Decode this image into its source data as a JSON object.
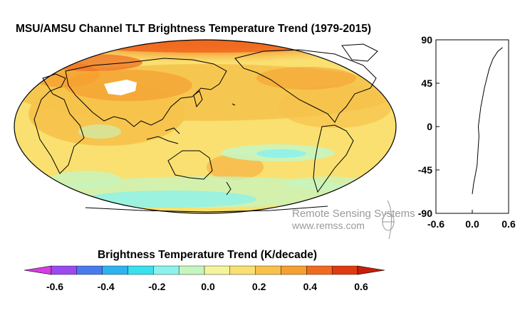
{
  "title": "MSU/AMSU Channel TLT Brightness Temperature Trend (1979-2015)",
  "colorbar": {
    "title": "Brightness Temperature Trend (K/decade)",
    "ticks": [
      "-0.6",
      "-0.4",
      "-0.2",
      "0.0",
      "0.2",
      "0.4",
      "0.6"
    ],
    "colors": [
      "#d53ee0",
      "#9a4af0",
      "#4a7af0",
      "#2fb3f0",
      "#38e0f0",
      "#8cf2ec",
      "#c6f5c0",
      "#f4f49a",
      "#f9e070",
      "#f6c24a",
      "#f5a030",
      "#f06a20",
      "#e03a10",
      "#c81e0a"
    ]
  },
  "map_colors": {
    "ocean_base": "#f9e070",
    "warm": "#f6c24a",
    "hot": "#f5a030",
    "arctic": "#f06a20",
    "cool": "#c6f5c0",
    "cold": "#8cf2ec",
    "no_data": "#ffffff"
  },
  "zonal_plot": {
    "y_ticks": [
      "90",
      "45",
      "0",
      "-45",
      "-90"
    ],
    "x_ticks": [
      "-0.6",
      "0.0",
      "0.6"
    ],
    "ylim": [
      -90,
      90
    ],
    "xlim": [
      -0.6,
      0.6
    ],
    "profile": [
      {
        "lat": -70,
        "trend": 0.0
      },
      {
        "lat": -65,
        "trend": 0.01
      },
      {
        "lat": -60,
        "trend": 0.02
      },
      {
        "lat": -50,
        "trend": 0.05
      },
      {
        "lat": -40,
        "trend": 0.08
      },
      {
        "lat": -30,
        "trend": 0.09
      },
      {
        "lat": -20,
        "trend": 0.1
      },
      {
        "lat": -10,
        "trend": 0.11
      },
      {
        "lat": 0,
        "trend": 0.1
      },
      {
        "lat": 10,
        "trend": 0.12
      },
      {
        "lat": 20,
        "trend": 0.14
      },
      {
        "lat": 30,
        "trend": 0.17
      },
      {
        "lat": 40,
        "trend": 0.2
      },
      {
        "lat": 50,
        "trend": 0.24
      },
      {
        "lat": 60,
        "trend": 0.28
      },
      {
        "lat": 70,
        "trend": 0.34
      },
      {
        "lat": 78,
        "trend": 0.42
      },
      {
        "lat": 82,
        "trend": 0.5
      }
    ]
  },
  "watermark": {
    "name": "Remote Sensing Systems",
    "url": "www.remss.com"
  }
}
